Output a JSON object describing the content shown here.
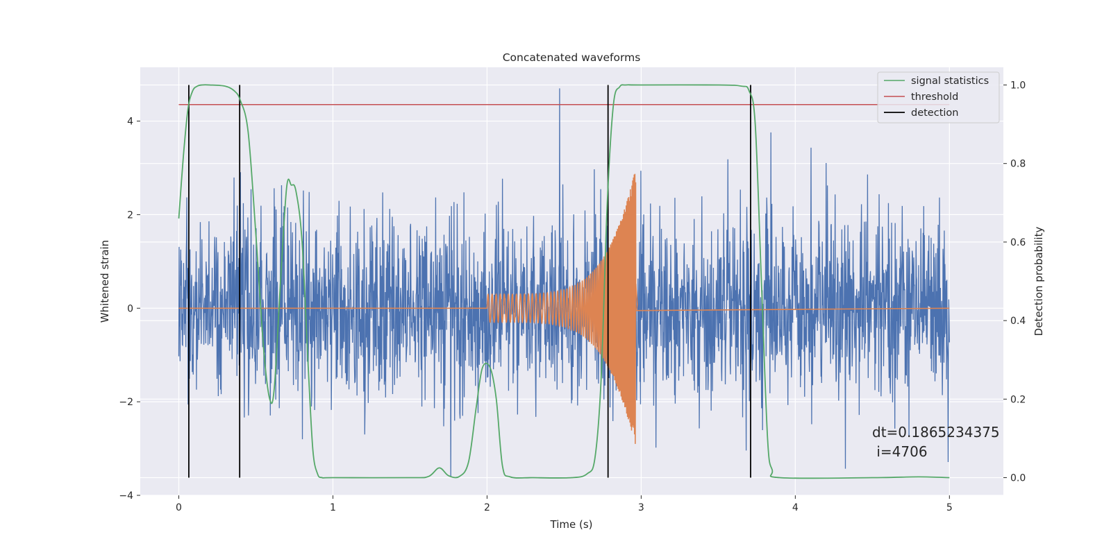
{
  "chart_data": {
    "type": "line",
    "title": "Concatenated waveforms",
    "xlabel": "Time (s)",
    "ylabel_left": "Whitened strain",
    "ylabel_right": "Detection probability",
    "xlim": [
      -0.25,
      5.35
    ],
    "ylim_left": [
      -4.0,
      5.15
    ],
    "ylim_right": [
      -0.045,
      1.045
    ],
    "xticks": [
      0,
      1,
      2,
      3,
      4,
      5
    ],
    "yticks_left": [
      -4,
      -2,
      0,
      2,
      4
    ],
    "yticks_right": [
      0.0,
      0.2,
      0.4,
      0.6,
      0.8,
      1.0
    ],
    "grid": true,
    "legend_position": "top-right",
    "colors": {
      "strain": "#4c72b0",
      "template": "#dd8452",
      "signal_statistics": "#55a868",
      "threshold": "#c44e52",
      "detection": "#000000",
      "axes_bg": "#eaeaf2",
      "grid": "#ffffff"
    },
    "series": [
      {
        "name": "signal statistics",
        "axis": "right",
        "x": [
          0.0,
          0.03,
          0.06,
          0.09,
          0.12,
          0.15,
          0.2,
          0.3,
          0.36,
          0.4,
          0.45,
          0.5,
          0.55,
          0.59,
          0.62,
          0.66,
          0.7,
          0.73,
          0.76,
          0.8,
          0.84,
          0.87,
          0.9,
          0.93,
          1.0,
          1.5,
          1.62,
          1.69,
          1.75,
          1.82,
          1.88,
          1.93,
          1.97,
          2.02,
          2.06,
          2.1,
          2.15,
          2.3,
          2.55,
          2.65,
          2.7,
          2.74,
          2.78,
          2.82,
          2.86,
          2.9,
          3.0,
          3.5,
          3.65,
          3.7,
          3.74,
          3.78,
          3.82,
          3.85,
          3.9,
          4.5,
          4.8,
          5.0
        ],
        "y": [
          0.66,
          0.82,
          0.94,
          0.985,
          0.997,
          1.0,
          1.0,
          0.997,
          0.985,
          0.96,
          0.88,
          0.62,
          0.33,
          0.2,
          0.23,
          0.5,
          0.74,
          0.745,
          0.73,
          0.6,
          0.28,
          0.07,
          0.01,
          0.0,
          0.0,
          0.0,
          0.003,
          0.025,
          0.005,
          0.003,
          0.04,
          0.18,
          0.28,
          0.28,
          0.2,
          0.03,
          0.002,
          0.0,
          0.0,
          0.01,
          0.05,
          0.25,
          0.7,
          0.95,
          0.995,
          1.0,
          1.0,
          1.0,
          0.997,
          0.985,
          0.9,
          0.5,
          0.1,
          0.02,
          0.0,
          0.0,
          0.002,
          0.0
        ]
      },
      {
        "name": "threshold",
        "axis": "right",
        "value": 0.95
      },
      {
        "name": "detection",
        "axis": "right",
        "x": [
          0.065,
          0.395,
          2.785,
          3.71
        ],
        "range": [
          0.0,
          1.0
        ]
      },
      {
        "name": "",
        "axis": "left",
        "kind": "noise",
        "x_range": [
          0.0,
          5.0
        ],
        "typical_amplitude": 1.0,
        "y_min": -3.6,
        "y_max": 4.7
      },
      {
        "name": "",
        "axis": "left",
        "kind": "chirp",
        "x_range": [
          2.0,
          2.97
        ],
        "start_amplitude": 0.3,
        "peak_amplitude": 3.0,
        "peak_time": 2.965,
        "y_min": -2.9,
        "y_max": 3.0
      }
    ],
    "annotations": [
      {
        "text": "dt=0.1865234375",
        "x": 4.5,
        "y": -2.7
      },
      {
        "text": " i=4706",
        "x": 4.5,
        "y": -3.1
      }
    ]
  }
}
